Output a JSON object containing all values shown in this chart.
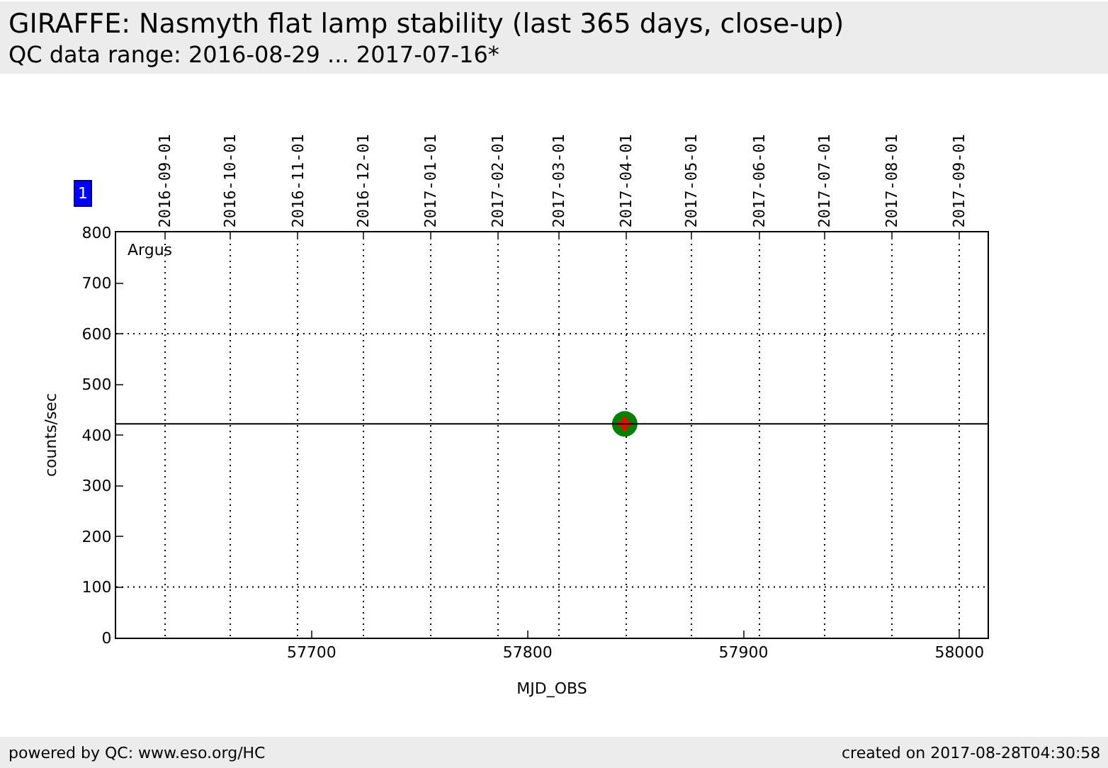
{
  "chart_data": {
    "type": "scatter",
    "title": "GIRAFFE: Nasmyth flat lamp stability (last 365 days, close-up)",
    "subtitle": "QC data range: 2016-08-29 ... 2017-07-16*",
    "xlabel": "MJD_OBS",
    "ylabel": "counts/sec",
    "series": [
      {
        "color": "#008000",
        "x": [
          57845
        ],
        "values": [
          422
        ],
        "marker": "circle"
      },
      {
        "color": "#ff0000",
        "x": [
          57845
        ],
        "values": [
          422
        ],
        "marker": "cross"
      }
    ],
    "xlim": [
      57609.5,
      58013
    ],
    "xticks": [
      57700,
      57800,
      57900,
      58000
    ],
    "ylim": [
      0,
      800
    ],
    "yticks": [
      0,
      100,
      200,
      300,
      400,
      500,
      600,
      700,
      800
    ],
    "x2lim": [
      "2016-08-09T12:00",
      "2017-09-14"
    ],
    "x2ticks": [
      "2016-09-01",
      "2016-10-01",
      "2016-11-01",
      "2016-12-01",
      "2017-01-01",
      "2017-02-01",
      "2017-03-01",
      "2017-04-01",
      "2017-05-01",
      "2017-06-01",
      "2017-07-01",
      "2017-08-01",
      "2017-09-01"
    ],
    "grid": "x",
    "ref_lines": [
      {
        "axis": "y",
        "value": 422,
        "line_style": "solid",
        "color": "#000000"
      },
      {
        "axis": "y",
        "value": 600,
        "line_style": "dotted",
        "color": "#000000"
      },
      {
        "axis": "y",
        "value": 100,
        "line_style": "dotted",
        "color": "#000000"
      }
    ],
    "annotations": [
      "Argus",
      "1",
      "powered by QC: www.eso.org/HC",
      "created on 2017-08-28T04:30:58"
    ]
  }
}
